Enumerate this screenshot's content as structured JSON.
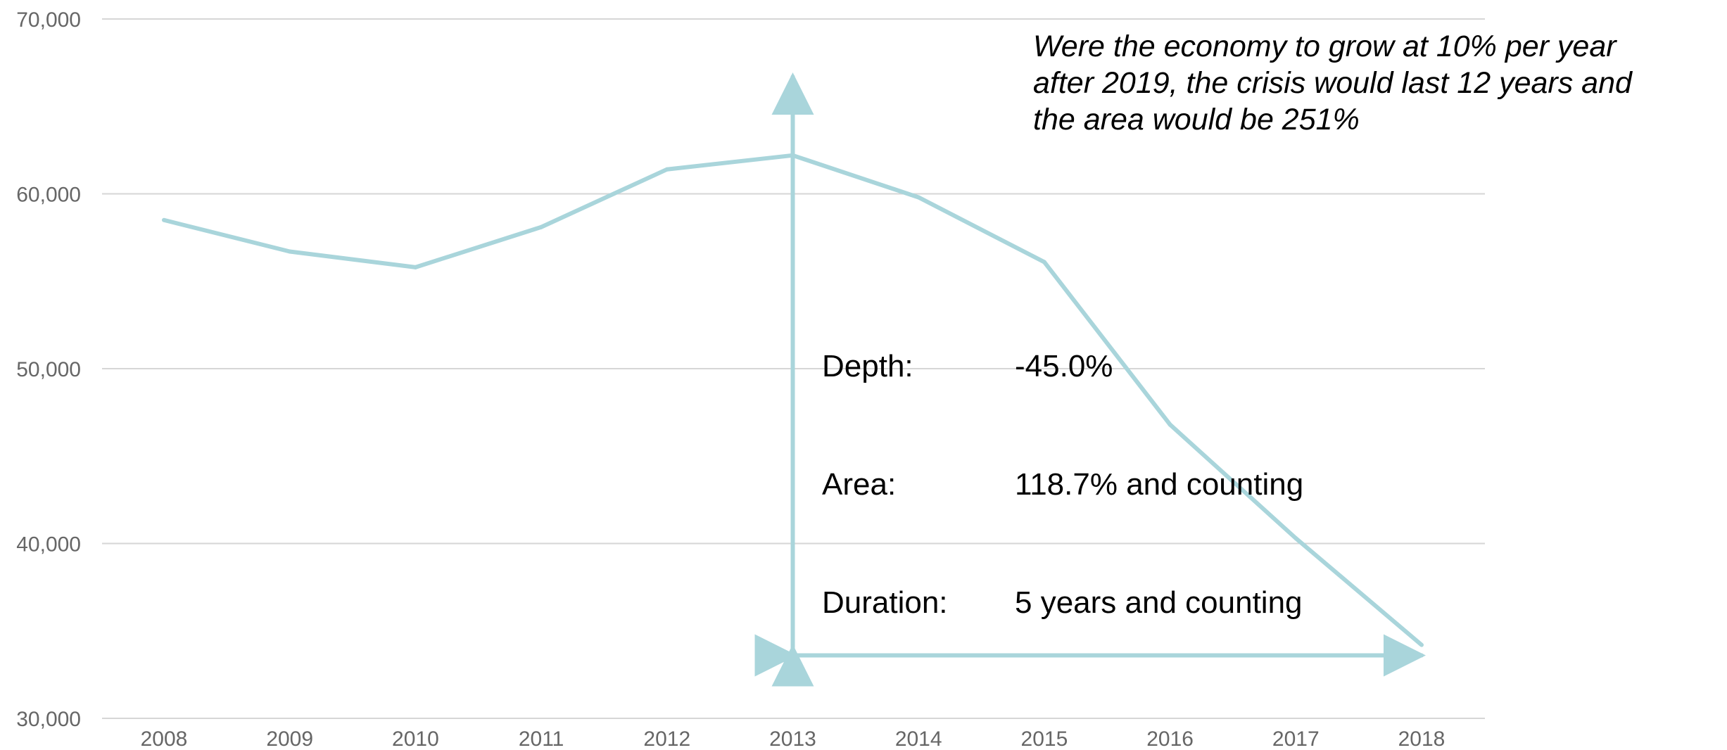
{
  "chart_data": {
    "type": "line",
    "title": "",
    "xlabel": "",
    "ylabel": "",
    "x": [
      "2008",
      "2009",
      "2010",
      "2011",
      "2012",
      "2013",
      "2014",
      "2015",
      "2016",
      "2017",
      "2018"
    ],
    "series": [
      {
        "values": [
          58500,
          56700,
          55800,
          58100,
          61400,
          62200,
          59800,
          56100,
          46800,
          40300,
          34200
        ]
      }
    ],
    "ylim": [
      30000,
      70000
    ],
    "y_ticks": [
      "30,000",
      "40,000",
      "50,000",
      "60,000",
      "70,000"
    ],
    "grid": "horizontal",
    "line_color": "#a9d5db",
    "grid_color": "#d6d6d6",
    "arrows": [
      {
        "orientation": "vertical",
        "x": "2013",
        "from_y": 34000,
        "to_y": 66700,
        "color": "#a9d5db"
      },
      {
        "orientation": "horizontal",
        "y": 33600,
        "from_x": "2013",
        "to_x": "2018",
        "color": "#a9d5db"
      }
    ],
    "annotations": {
      "note_lines": [
        "Were the economy to  grow at 10% per year",
        "after 2019, the crisis would last 12 years and",
        "the area would be 251%"
      ],
      "metrics": [
        {
          "label": "Depth:",
          "value": "-45.0%"
        },
        {
          "label": "Area:",
          "value": "118.7% and counting"
        },
        {
          "label": "Duration:",
          "value": "5 years and counting"
        }
      ]
    }
  }
}
